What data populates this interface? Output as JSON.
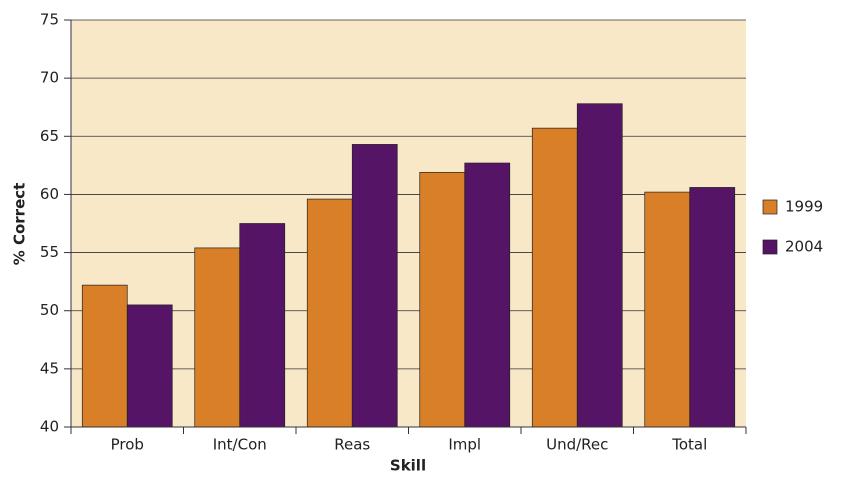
{
  "chart_data": {
    "type": "bar",
    "x_label": "Skill",
    "y_label": "% Correct",
    "categories": [
      "Prob",
      "Int/Con",
      "Reas",
      "Impl",
      "Und/Rec",
      "Total"
    ],
    "series": [
      {
        "name": "1999",
        "color": "#d97f27",
        "values": [
          52.2,
          55.4,
          59.6,
          61.9,
          65.7,
          60.2
        ]
      },
      {
        "name": "2004",
        "color": "#561466",
        "values": [
          50.5,
          57.5,
          64.3,
          62.7,
          67.8,
          60.6
        ]
      }
    ],
    "ylim": [
      40,
      75
    ],
    "yticks": [
      40,
      45,
      50,
      55,
      60,
      65,
      70,
      75
    ],
    "grid": true,
    "legend": "right",
    "plot_background": "#f8e8c8"
  }
}
